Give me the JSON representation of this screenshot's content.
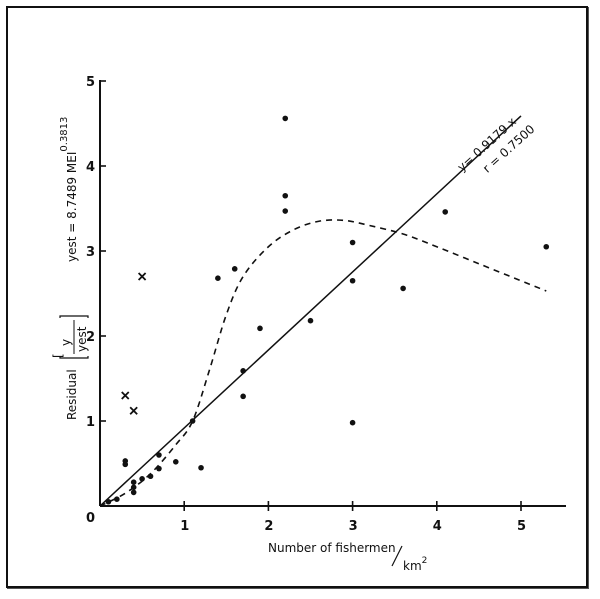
{
  "chart_data": {
    "type": "scatter",
    "title": "",
    "xlabel": "Number of fishermen/km²",
    "xlabel_main": "Number of fishermen",
    "xlabel_unit": "km",
    "xlabel_unit_exp": "2",
    "ylabel": "Residual [y / y_est]",
    "ylabel_word": "Residual",
    "ylabel_num": "y",
    "ylabel_den": "yest",
    "y_annotation": "y_est = 8.7489 MEI^0.3813",
    "y_annotation_base": "yest = 8.7489 MEI",
    "y_annotation_exp": "0.3813",
    "xlim": [
      0,
      5.5
    ],
    "ylim": [
      0,
      5
    ],
    "x_ticks": [
      "1",
      "2",
      "3",
      "4",
      "5"
    ],
    "y_ticks": [
      "1",
      "2",
      "3",
      "4",
      "5"
    ],
    "origin_label": "0",
    "grid": false,
    "legend": null,
    "regression": {
      "equation": "y= 0.9179 x",
      "r_label": "r = 0.7500",
      "slope": 0.9179,
      "x_range": [
        0,
        5.0
      ]
    },
    "dashed_curve": {
      "x": [
        0,
        0.3,
        0.6,
        0.9,
        1.1,
        1.3,
        1.5,
        1.7,
        2.0,
        2.3,
        2.6,
        2.9,
        3.2,
        3.6,
        4.0,
        4.5,
        5.0,
        5.3
      ],
      "y": [
        0,
        0.15,
        0.38,
        0.72,
        1.0,
        1.6,
        2.25,
        2.7,
        3.05,
        3.25,
        3.35,
        3.36,
        3.3,
        3.2,
        3.05,
        2.85,
        2.65,
        2.53
      ]
    },
    "series": [
      {
        "name": "dots",
        "marker": "circle",
        "points": [
          [
            0.1,
            0.05
          ],
          [
            0.2,
            0.08
          ],
          [
            0.3,
            0.53
          ],
          [
            0.3,
            0.49
          ],
          [
            0.4,
            0.28
          ],
          [
            0.4,
            0.22
          ],
          [
            0.4,
            0.16
          ],
          [
            0.5,
            0.32
          ],
          [
            0.6,
            0.35
          ],
          [
            0.7,
            0.6
          ],
          [
            0.7,
            0.44
          ],
          [
            0.9,
            0.52
          ],
          [
            1.1,
            1.0
          ],
          [
            1.2,
            0.45
          ],
          [
            1.4,
            2.68
          ],
          [
            1.6,
            2.79
          ],
          [
            1.7,
            1.59
          ],
          [
            1.7,
            1.29
          ],
          [
            1.9,
            2.09
          ],
          [
            2.2,
            4.56
          ],
          [
            2.2,
            3.65
          ],
          [
            2.2,
            3.47
          ],
          [
            2.5,
            2.18
          ],
          [
            3.0,
            3.1
          ],
          [
            3.0,
            2.65
          ],
          [
            3.0,
            0.98
          ],
          [
            3.6,
            2.56
          ],
          [
            4.1,
            3.46
          ],
          [
            5.3,
            3.05
          ]
        ]
      },
      {
        "name": "crosses",
        "marker": "x",
        "points": [
          [
            0.5,
            2.7
          ],
          [
            0.3,
            1.3
          ],
          [
            0.4,
            1.12
          ]
        ]
      }
    ]
  }
}
